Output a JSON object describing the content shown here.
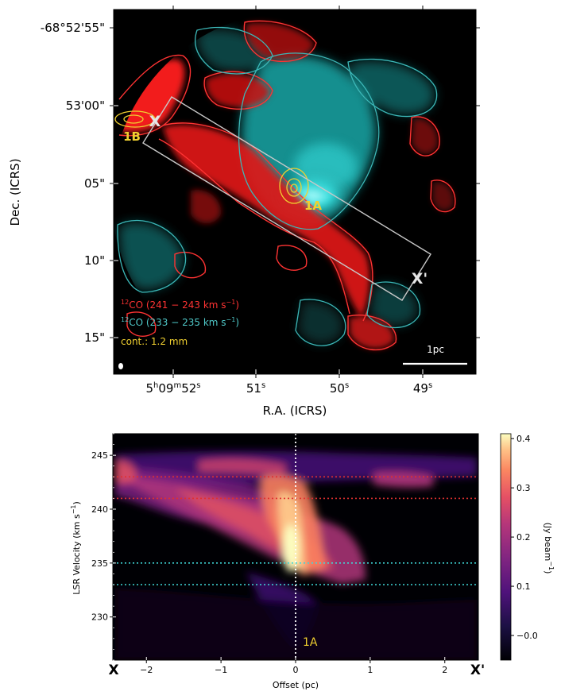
{
  "chart_data": [
    {
      "type": "heatmap",
      "panel": "top",
      "title": "",
      "xlabel": "R.A. (ICRS)",
      "ylabel": "Dec. (ICRS)",
      "x_tick_labels": [
        "5h09m52s",
        "51s",
        "50s",
        "49s"
      ],
      "x_ticks": {
        "hms_main": "5",
        "hms_h": "h",
        "hms_mid": "09",
        "hms_m": "m",
        "hms_sec": "52",
        "hms_s": "s",
        "t2": "51",
        "t3": "50",
        "t4": "49",
        "sfx": "s"
      },
      "y_tick_labels": [
        "-68°52'55\"",
        "53'00\"",
        "05\"",
        "10\"",
        "15\""
      ],
      "legend": {
        "red_label": "12CO (241 − 243 km s−1)",
        "red_sup": "12",
        "red_text": "CO (241 − 243 km s",
        "red_unit_sup": "−1",
        "red_close": ")",
        "cyan_label": "12CO (233 − 235 km s−1)",
        "cyan_sup": "12",
        "cyan_text": "CO (233 − 235 km s",
        "cyan_unit_sup": "−1",
        "cyan_close": ")",
        "cont_label": "cont.: 1.2 mm"
      },
      "annotations": {
        "source_1B": "1B",
        "source_1A": "1A",
        "cut_start": "X",
        "cut_end": "X'",
        "scalebar": "1pc"
      },
      "colors": {
        "red": "#ff2222",
        "cyan": "#22dede",
        "yellow": "#f0d030",
        "slit": "#c8c8c8"
      }
    },
    {
      "type": "heatmap",
      "panel": "bottom",
      "title": "",
      "xlabel": "Offset (pc)",
      "ylabel": "LSR Velocity (km s−1)",
      "ylabel_main": "LSR Velocity (km s",
      "ylabel_sup": "−1",
      "ylabel_close": ")",
      "xlim": [
        -2.45,
        2.45
      ],
      "ylim": [
        226,
        247
      ],
      "x_ticks": [
        -2,
        -1,
        0,
        1,
        2
      ],
      "x_tick_labels": [
        "−2",
        "−1",
        "0",
        "1",
        "2"
      ],
      "y_ticks": [
        230,
        235,
        240,
        245
      ],
      "y_tick_labels": [
        "230",
        "235",
        "240",
        "245"
      ],
      "end_labels": {
        "left": "X",
        "right": "X'"
      },
      "source_label": "1A",
      "reference_lines": {
        "red_dotted": [
          243,
          241
        ],
        "cyan_dotted": [
          235,
          233
        ],
        "vertical_white": 0
      },
      "colorbar": {
        "label": "(Jy beam−1)",
        "label_main": "(Jy beam",
        "label_sup": "−1",
        "label_close": ")",
        "min": -0.05,
        "max": 0.41,
        "ticks": [
          0.4,
          0.3,
          0.2,
          0.1,
          0.0
        ],
        "tick_labels": [
          "0.4",
          "0.3",
          "0.2",
          "0.1",
          "−0.0"
        ]
      },
      "emission_peak": {
        "offset_pc": 0,
        "velocity_kms": 236,
        "intensity_jy_beam": 0.41
      }
    }
  ]
}
